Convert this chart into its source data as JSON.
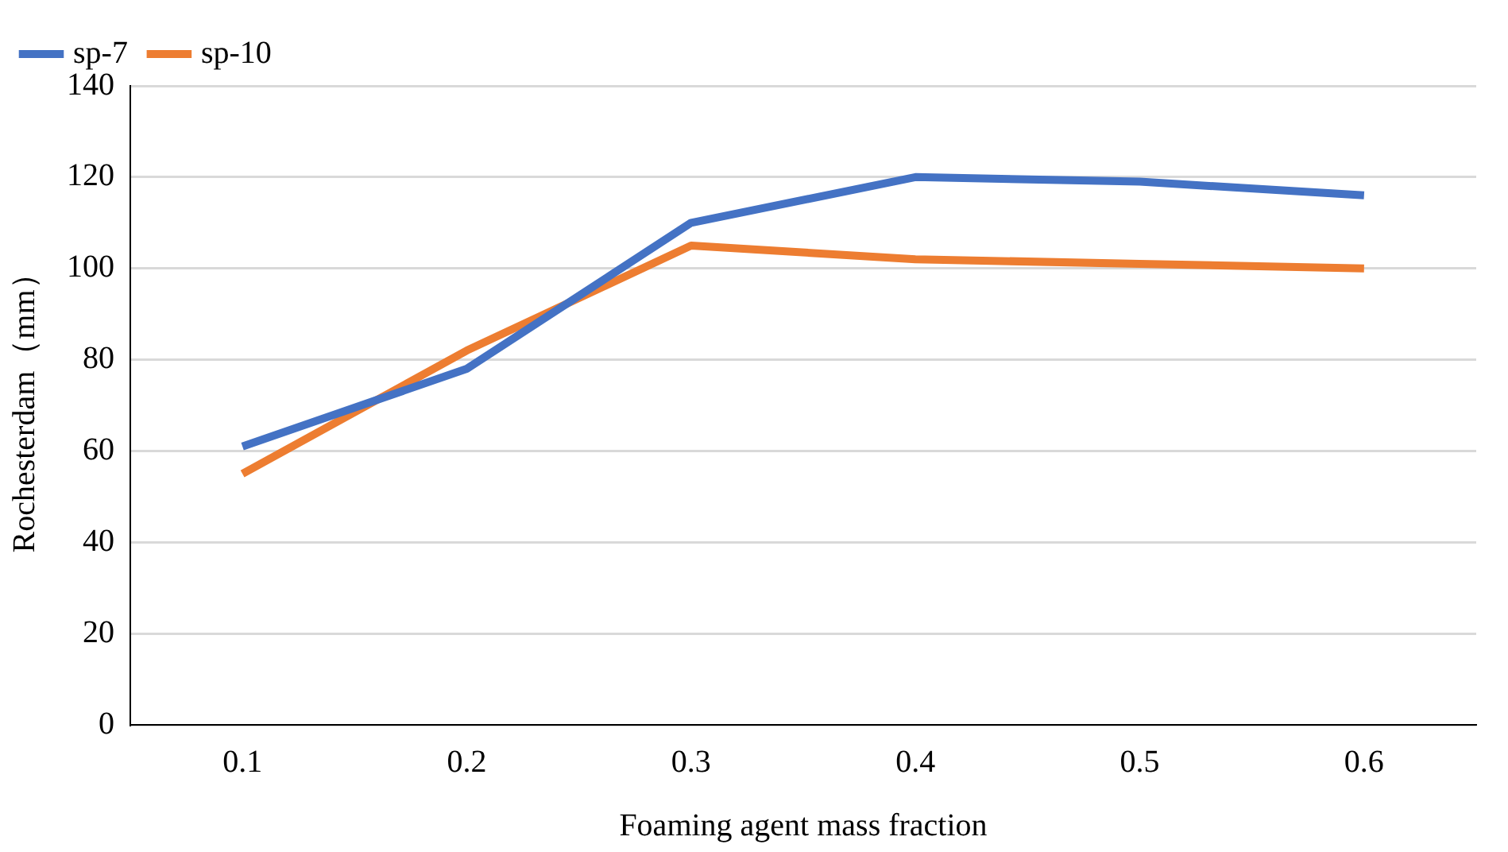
{
  "chart_data": {
    "type": "line",
    "xlabel": "Foaming agent mass fraction",
    "ylabel": "Rochesterdam（mm）",
    "categories": [
      "0.1",
      "0.2",
      "0.3",
      "0.4",
      "0.5",
      "0.6"
    ],
    "series": [
      {
        "name": "sp-7",
        "color": "#4472c4",
        "values": [
          61,
          78,
          110,
          120,
          119,
          116
        ]
      },
      {
        "name": "sp-10",
        "color": "#ed7d31",
        "values": [
          55,
          82,
          105,
          102,
          101,
          100
        ]
      }
    ],
    "ylim": [
      0,
      140
    ],
    "yticks": [
      0,
      20,
      40,
      60,
      80,
      100,
      120,
      140
    ],
    "grid": "y",
    "legend": "top left",
    "marker": "none",
    "line_style": "solid"
  }
}
